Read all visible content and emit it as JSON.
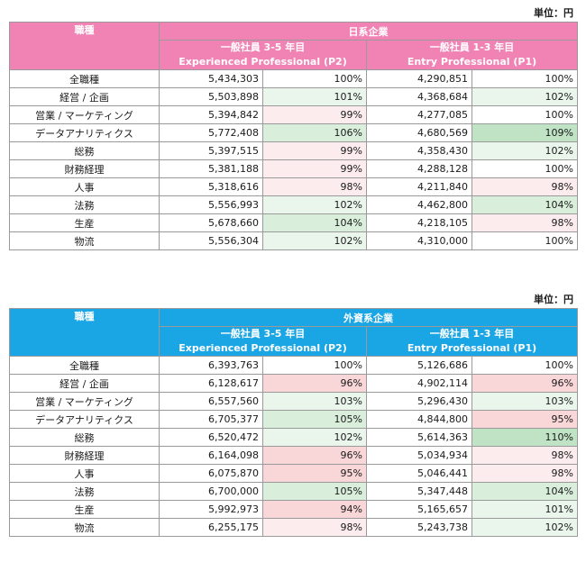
{
  "tables": [
    {
      "unit": "単位：円",
      "role_header": "職種",
      "group_header": "日系企業",
      "col1_title": "一般社員 3-5 年目",
      "col1_sub": "Experienced Professional (P2)",
      "col2_title": "一般社員 1-3 年目",
      "col2_sub": "Entry Professional (P1)",
      "rows": [
        {
          "role": "全職種",
          "p2_salary": "5,434,303",
          "p2_pct": "100%",
          "p1_salary": "4,290,851",
          "p1_pct": "100%"
        },
        {
          "role": "経営 / 企画",
          "p2_salary": "5,503,898",
          "p2_pct": "101%",
          "p1_salary": "4,368,684",
          "p1_pct": "102%"
        },
        {
          "role": "営業 / マーケティング",
          "p2_salary": "5,394,842",
          "p2_pct": "99%",
          "p1_salary": "4,277,085",
          "p1_pct": "100%"
        },
        {
          "role": "データアナリティクス",
          "p2_salary": "5,772,408",
          "p2_pct": "106%",
          "p1_salary": "4,680,569",
          "p1_pct": "109%"
        },
        {
          "role": "総務",
          "p2_salary": "5,397,515",
          "p2_pct": "99%",
          "p1_salary": "4,358,430",
          "p1_pct": "102%"
        },
        {
          "role": "財務経理",
          "p2_salary": "5,381,188",
          "p2_pct": "99%",
          "p1_salary": "4,288,128",
          "p1_pct": "100%"
        },
        {
          "role": "人事",
          "p2_salary": "5,318,616",
          "p2_pct": "98%",
          "p1_salary": "4,211,840",
          "p1_pct": "98%"
        },
        {
          "role": "法務",
          "p2_salary": "5,556,993",
          "p2_pct": "102%",
          "p1_salary": "4,462,800",
          "p1_pct": "104%"
        },
        {
          "role": "生産",
          "p2_salary": "5,678,660",
          "p2_pct": "104%",
          "p1_salary": "4,218,105",
          "p1_pct": "98%"
        },
        {
          "role": "物流",
          "p2_salary": "5,556,304",
          "p2_pct": "102%",
          "p1_salary": "4,310,000",
          "p1_pct": "100%"
        }
      ]
    },
    {
      "unit": "単位：円",
      "role_header": "職種",
      "group_header": "外資系企業",
      "col1_title": "一般社員 3-5 年目",
      "col1_sub": "Experienced Professional (P2)",
      "col2_title": "一般社員 1-3 年目",
      "col2_sub": "Entry Professional (P1)",
      "rows": [
        {
          "role": "全職種",
          "p2_salary": "6,393,763",
          "p2_pct": "100%",
          "p1_salary": "5,126,686",
          "p1_pct": "100%"
        },
        {
          "role": "経営 / 企画",
          "p2_salary": "6,128,617",
          "p2_pct": "96%",
          "p1_salary": "4,902,114",
          "p1_pct": "96%"
        },
        {
          "role": "営業 / マーケティング",
          "p2_salary": "6,557,560",
          "p2_pct": "103%",
          "p1_salary": "5,296,430",
          "p1_pct": "103%"
        },
        {
          "role": "データアナリティクス",
          "p2_salary": "6,705,377",
          "p2_pct": "105%",
          "p1_salary": "4,844,800",
          "p1_pct": "95%"
        },
        {
          "role": "総務",
          "p2_salary": "6,520,472",
          "p2_pct": "102%",
          "p1_salary": "5,614,363",
          "p1_pct": "110%"
        },
        {
          "role": "財務経理",
          "p2_salary": "6,164,098",
          "p2_pct": "96%",
          "p1_salary": "5,034,934",
          "p1_pct": "98%"
        },
        {
          "role": "人事",
          "p2_salary": "6,075,870",
          "p2_pct": "95%",
          "p1_salary": "5,046,441",
          "p1_pct": "98%"
        },
        {
          "role": "法務",
          "p2_salary": "6,700,000",
          "p2_pct": "105%",
          "p1_salary": "5,347,448",
          "p1_pct": "104%"
        },
        {
          "role": "生産",
          "p2_salary": "5,992,973",
          "p2_pct": "94%",
          "p1_salary": "5,165,657",
          "p1_pct": "101%"
        },
        {
          "role": "物流",
          "p2_salary": "6,255,175",
          "p2_pct": "98%",
          "p1_salary": "5,243,738",
          "p1_pct": "102%"
        }
      ]
    }
  ]
}
